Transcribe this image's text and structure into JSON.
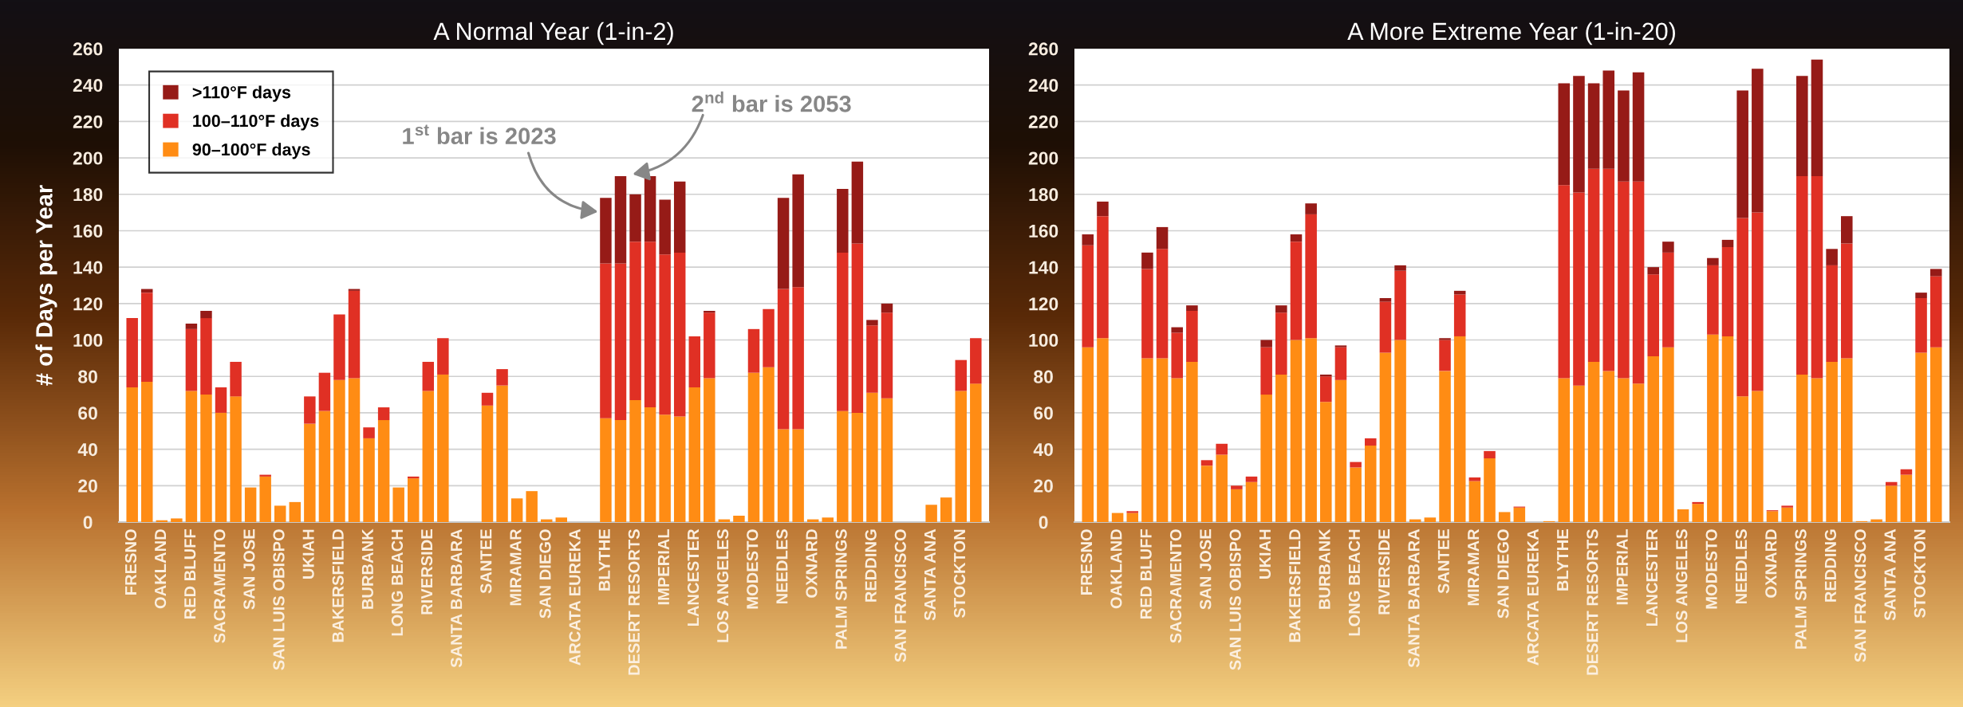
{
  "chart_data": [
    {
      "type": "bar",
      "stacked": true,
      "title": "A Normal Year (1-in-2)",
      "ylabel": "# of Days per Year",
      "categories": [
        "FRESNO",
        null,
        "OAKLAND",
        null,
        "RED BLUFF",
        null,
        "SACRAMENTO",
        null,
        "SAN JOSE",
        null,
        "SAN LUIS OBISPO",
        null,
        "UKIAH",
        null,
        "BAKERSFIELD",
        null,
        "BURBANK",
        null,
        "LONG BEACH",
        null,
        "RIVERSIDE",
        null,
        "SANTA BARBARA",
        null,
        "SANTEE",
        null,
        "MIRAMAR",
        null,
        "SAN DIEGO",
        null,
        "ARCATA EUREKA",
        null,
        "BLYTHE",
        null,
        "DESERT RESORTS",
        null,
        "IMPERIAL",
        null,
        "LANCESTER",
        null,
        "LOS ANGELES",
        null,
        "MODESTO",
        null,
        "NEEDLES",
        null,
        "OXNARD",
        null,
        "PALM SPRINGS",
        null,
        "REDDING",
        null,
        "SAN FRANCISCO",
        null,
        "SANTA ANA",
        null,
        "STOCKTON",
        null
      ],
      "series": [
        {
          "name": "90–100°F days",
          "color": "#ff8c14",
          "values": [
            74,
            77,
            1,
            2,
            72,
            70,
            60,
            69,
            19,
            25,
            9,
            11,
            54,
            61,
            78,
            79,
            46,
            56,
            19,
            24,
            72,
            81,
            0,
            0,
            64,
            75,
            13,
            17,
            1.5,
            2.5,
            0,
            0,
            57,
            56,
            67,
            63,
            59,
            58,
            74,
            79,
            1.5,
            3.5,
            82,
            85,
            51,
            51,
            1.5,
            2.5,
            61,
            60,
            71,
            68,
            0,
            0,
            9.5,
            13.5,
            72,
            76
          ]
        },
        {
          "name": "100–110°F days",
          "color": "#e03024",
          "values": [
            38,
            49,
            0,
            0,
            34,
            42,
            14,
            19,
            0,
            1,
            0,
            0,
            15,
            21,
            36,
            48,
            6,
            7,
            0,
            1,
            16,
            20,
            0,
            0,
            7,
            9,
            0,
            0,
            0,
            0,
            0,
            0,
            85,
            86,
            87,
            91,
            88,
            90,
            28,
            36,
            0,
            0,
            24,
            32,
            77,
            78,
            0,
            0,
            87,
            93,
            37,
            47,
            0,
            0,
            0,
            0,
            17,
            25
          ]
        },
        {
          "name": ">110°F days",
          "color": "#961b17",
          "values": [
            0,
            2,
            0,
            0,
            3,
            4,
            0,
            0,
            0,
            0,
            0,
            0,
            0,
            0,
            0,
            1,
            0,
            0,
            0,
            0,
            0,
            0,
            0,
            0,
            0,
            0,
            0,
            0,
            0,
            0,
            0,
            0,
            36,
            48,
            26,
            36,
            30,
            39,
            0,
            1,
            0,
            0,
            0,
            0,
            50,
            62,
            0,
            0,
            35,
            45,
            3,
            5,
            0,
            0,
            0,
            0,
            0,
            0
          ]
        }
      ],
      "ylim": [
        0,
        260
      ],
      "yticks": [
        0,
        20,
        40,
        60,
        80,
        100,
        120,
        140,
        160,
        180,
        200,
        220,
        240,
        260
      ],
      "grid": "y",
      "legend": "top left",
      "annotations": [
        "1$^{st}$ bar is 2023",
        "2$^{nd}$ bar is 2053"
      ]
    },
    {
      "type": "bar",
      "stacked": true,
      "title": "A More Extreme Year (1-in-20)",
      "categories": [
        "FRESNO",
        null,
        "OAKLAND",
        null,
        "RED BLUFF",
        null,
        "SACRAMENTO",
        null,
        "SAN JOSE",
        null,
        "SAN LUIS OBISPO",
        null,
        "UKIAH",
        null,
        "BAKERSFIELD",
        null,
        "BURBANK",
        null,
        "LONG BEACH",
        null,
        "RIVERSIDE",
        null,
        "SANTA BARBARA",
        null,
        "SANTEE",
        null,
        "MIRAMAR",
        null,
        "SAN DIEGO",
        null,
        "ARCATA EUREKA",
        null,
        "BLYTHE",
        null,
        "DESERT RESORTS",
        null,
        "IMPERIAL",
        null,
        "LANCESTER",
        null,
        "LOS ANGELES",
        null,
        "MODESTO",
        null,
        "NEEDLES",
        null,
        "OXNARD",
        null,
        "PALM SPRINGS",
        null,
        "REDDING",
        null,
        "SAN FRANCISCO",
        null,
        "SANTA ANA",
        null,
        "STOCKTON",
        null
      ],
      "series": [
        {
          "color": "#ff8c14",
          "values": [
            96,
            101,
            5,
            5,
            90,
            90,
            79,
            88,
            31,
            37,
            18,
            22,
            70,
            81,
            100,
            101,
            66,
            78,
            30,
            42,
            93,
            100,
            1.5,
            2.5,
            83,
            102,
            22.5,
            35,
            5.5,
            8,
            0,
            0.5,
            79,
            75,
            88,
            83,
            79,
            76,
            91,
            96,
            7,
            10,
            103,
            102,
            69,
            72,
            6,
            8,
            81,
            79,
            88,
            90,
            0.5,
            1.5,
            20,
            26,
            93,
            96
          ]
        },
        {
          "color": "#e03024",
          "values": [
            56,
            67,
            0,
            1,
            49,
            60,
            25,
            28,
            3,
            6,
            2,
            3,
            26,
            34,
            54,
            68,
            14,
            18,
            3,
            4,
            28,
            38,
            0,
            0,
            17,
            23,
            2,
            4,
            0,
            0.5,
            0,
            0,
            106,
            106,
            106,
            111,
            108,
            111,
            45,
            52,
            0,
            1,
            38,
            49,
            98,
            98,
            0.5,
            1,
            109,
            111,
            53,
            63,
            0,
            0,
            2,
            3,
            30,
            39
          ]
        },
        {
          "color": "#961b17",
          "values": [
            6,
            8,
            0,
            0,
            9,
            12,
            3,
            3,
            0,
            0,
            0,
            0,
            4,
            4,
            4,
            6,
            1,
            1,
            0,
            0,
            2,
            3,
            0,
            0,
            1,
            2,
            0,
            0,
            0,
            0,
            0,
            0,
            56,
            64,
            47,
            54,
            50,
            60,
            4,
            6,
            0,
            0,
            4,
            4,
            70,
            79,
            0,
            0,
            55,
            64,
            9,
            15,
            0,
            0,
            0,
            0,
            3,
            4
          ]
        }
      ],
      "ylim": [
        0,
        260
      ],
      "yticks": [
        0,
        20,
        40,
        60,
        80,
        100,
        120,
        140,
        160,
        180,
        200,
        220,
        240,
        260
      ],
      "grid": "y"
    }
  ]
}
